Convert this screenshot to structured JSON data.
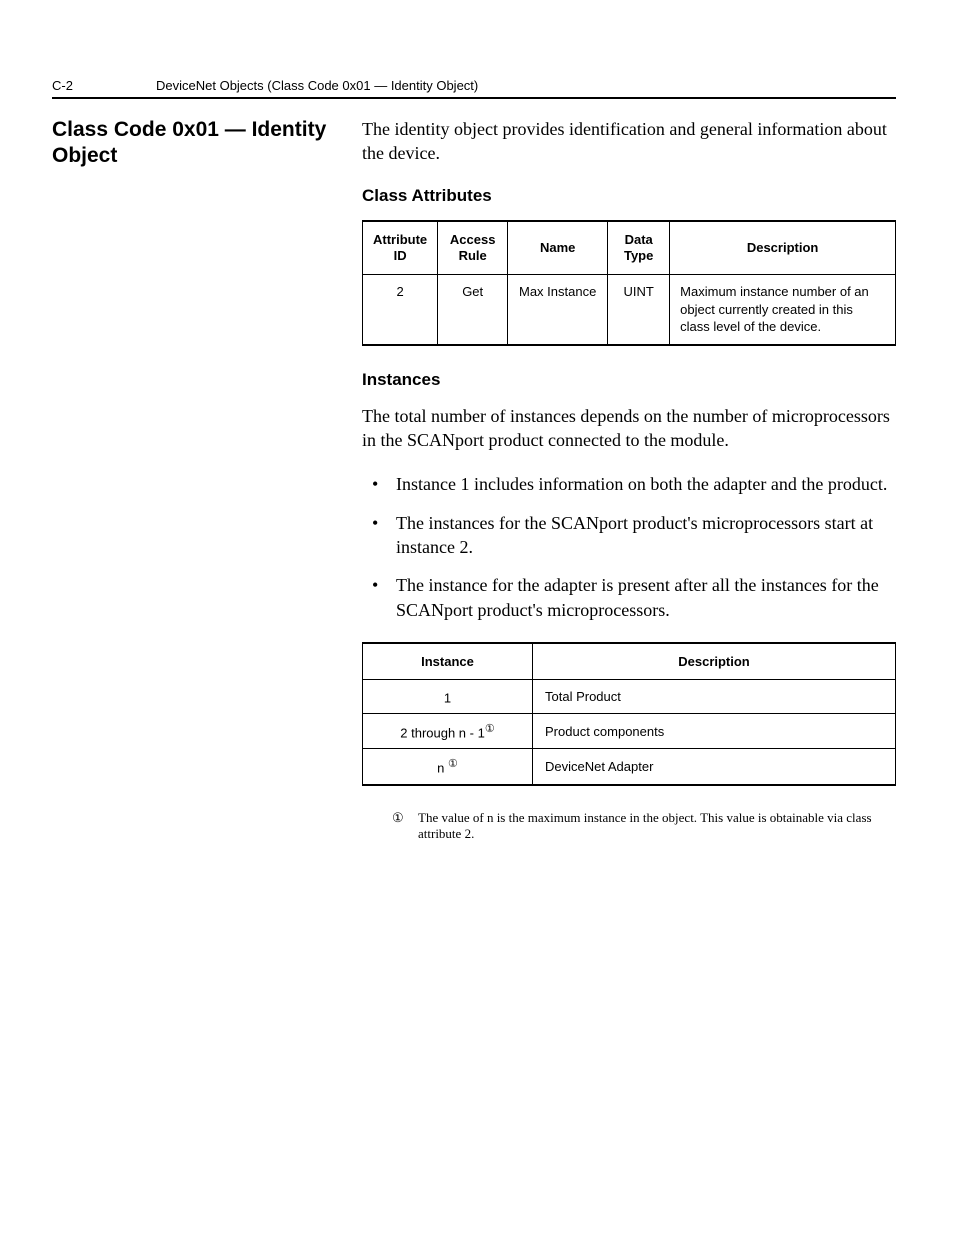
{
  "header": {
    "page_number": "C-2",
    "chapter": "DeviceNet Objects (Class Code 0x01 — Identity Object)"
  },
  "section": {
    "title": "Class Code 0x01 — Identity Object",
    "intro": "The identity object provides identification and general information about the device."
  },
  "class_attributes": {
    "heading": "Class Attributes",
    "columns": {
      "c1a": "Attribute",
      "c1b": "ID",
      "c2a": "Access",
      "c2b": "Rule",
      "c3": "Name",
      "c4a": "Data",
      "c4b": "Type",
      "c5": "Description"
    },
    "row": {
      "id": "2",
      "access": "Get",
      "name": "Max Instance",
      "dtype": "UINT",
      "desc": "Maximum instance number of an object currently created in this class level of the device."
    }
  },
  "instances": {
    "heading": "Instances",
    "para": "The total number of instances depends on the number of microprocessors in the SCANport product connected to the module.",
    "bullets": [
      "Instance 1 includes information on both the adapter and the product.",
      "The instances for the SCANport product's microprocessors start at instance 2.",
      "The instance for the adapter is present after all the instances for the SCANport product's microprocessors."
    ],
    "columns": {
      "i1": "Instance",
      "i2": "Description"
    },
    "rows": [
      {
        "inst": "1",
        "note": "",
        "desc": "Total Product"
      },
      {
        "inst": "2 through n - 1",
        "note": "①",
        "desc": "Product components"
      },
      {
        "inst": "n ",
        "note": "①",
        "desc": "DeviceNet Adapter"
      }
    ],
    "footnote": {
      "mark": "①",
      "text": "The value of n is the maximum instance in the object. This value is obtainable via class attribute 2."
    }
  }
}
